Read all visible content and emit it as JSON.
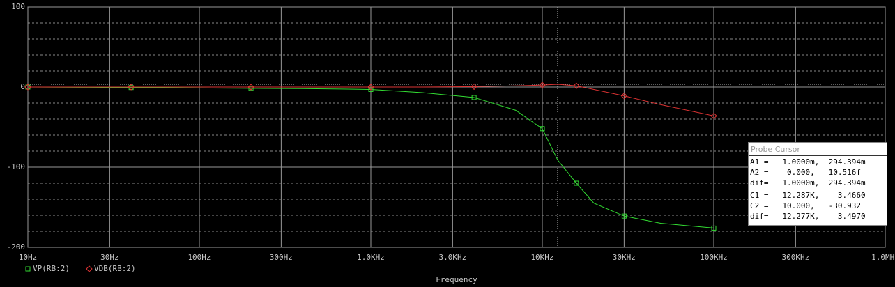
{
  "chart_data": {
    "type": "line",
    "x_label": "Frequency",
    "x": [
      10,
      20,
      40,
      100,
      200,
      400,
      1000,
      2000,
      4000,
      7000,
      10000,
      12287,
      15800,
      20000,
      30000,
      49000,
      100000
    ],
    "series": [
      {
        "name": "VP(RB:2)",
        "color": "#33dd33",
        "marker": "square",
        "values": [
          0,
          -0.3,
          -0.6,
          -1.2,
          -1.6,
          -2,
          -3,
          -7,
          -13,
          -29,
          -52,
          -91,
          -120,
          -145,
          -161,
          -170,
          -176
        ]
      },
      {
        "name": "VDB(RB:2)",
        "color": "#dd3333",
        "marker": "diamond",
        "values": [
          0,
          0,
          0,
          0,
          0,
          0,
          0,
          0,
          0.5,
          1.5,
          2.5,
          3.47,
          1.5,
          -3,
          -11,
          -22,
          -36
        ]
      }
    ],
    "xscale": "log",
    "xlim": [
      10,
      1000000
    ],
    "xticks": [
      {
        "value": 10,
        "label": "10Hz"
      },
      {
        "value": 30,
        "label": "30Hz"
      },
      {
        "value": 100,
        "label": "100Hz"
      },
      {
        "value": 300,
        "label": "300Hz"
      },
      {
        "value": 1000,
        "label": "1.0KHz"
      },
      {
        "value": 3000,
        "label": "3.0KHz"
      },
      {
        "value": 10000,
        "label": "10KHz"
      },
      {
        "value": 30000,
        "label": "30KHz"
      },
      {
        "value": 100000,
        "label": "100KHz"
      },
      {
        "value": 300000,
        "label": "300KHz"
      },
      {
        "value": 1000000,
        "label": "1.0MHz"
      }
    ],
    "ylim": [
      -200,
      100
    ],
    "yticks": [
      100,
      0,
      -100,
      -200
    ],
    "minor_yticks": [
      80,
      60,
      40,
      20,
      -20,
      -40,
      -60,
      -80,
      -120,
      -140,
      -160,
      -180
    ],
    "grid": true
  },
  "probe_cursor": {
    "title": "Probe Cursor",
    "groups": [
      [
        "A1 =   1.0000m,  294.394m",
        "A2 =    0.000,   10.516f",
        "dif=   1.0000m,  294.394m"
      ],
      [
        "C1 =   12.287K,    3.4660",
        "C2 =   10.000,   -30.932",
        "dif=   12.277K,    3.4970"
      ]
    ]
  }
}
